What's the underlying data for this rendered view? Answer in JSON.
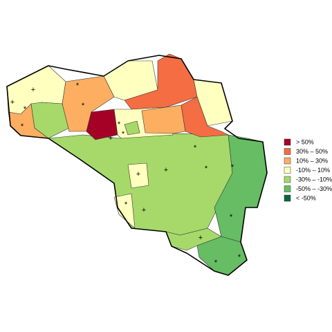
{
  "legend": {
    "items": [
      {
        "label": "> 50%",
        "color": "#a50026"
      },
      {
        "label": "30%  –  50%",
        "color": "#f46d43"
      },
      {
        "label": "10%  –  30%",
        "color": "#fdae61"
      },
      {
        "label": "-10%  –  10%",
        "color": "#ffffbf"
      },
      {
        "label": "-30%  –  -10%",
        "color": "#a6d96a"
      },
      {
        "label": "-50%  –  -30%",
        "color": "#66bd63"
      },
      {
        "label": "< -50%",
        "color": "#006837"
      }
    ]
  },
  "markers": [
    "+",
    "+",
    "*",
    "*",
    "*",
    "*",
    "*",
    "*",
    "*",
    "+",
    "*",
    "+",
    "*",
    "+",
    "+",
    "*",
    "+",
    "*",
    "*",
    "*"
  ]
}
